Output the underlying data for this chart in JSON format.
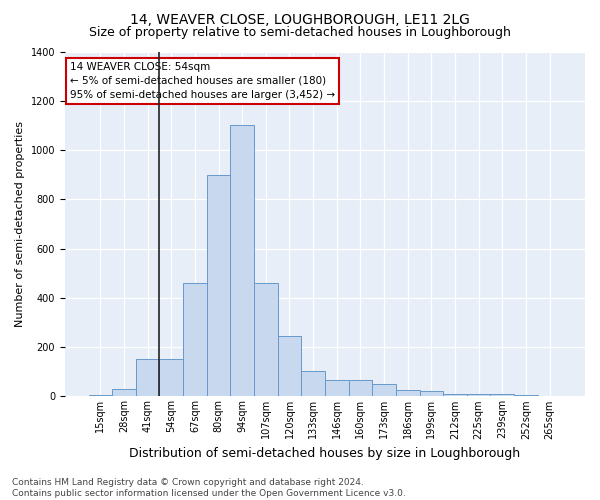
{
  "title": "14, WEAVER CLOSE, LOUGHBOROUGH, LE11 2LG",
  "subtitle": "Size of property relative to semi-detached houses in Loughborough",
  "xlabel": "Distribution of semi-detached houses by size in Loughborough",
  "ylabel": "Number of semi-detached properties",
  "bar_color": "#c8d8ee",
  "bar_edge_color": "#6699cc",
  "background_color": "#e8eef8",
  "vline_x": 3,
  "annotation_text": "14 WEAVER CLOSE: 54sqm\n← 5% of semi-detached houses are smaller (180)\n95% of semi-detached houses are larger (3,452) →",
  "annotation_box_color": "#ffffff",
  "annotation_border_color": "#cc0000",
  "bar_heights": [
    5,
    30,
    150,
    150,
    460,
    900,
    1100,
    460,
    245,
    105,
    65,
    65,
    50,
    25,
    20,
    10,
    8,
    10,
    5,
    3
  ],
  "tick_labels": [
    "15sqm",
    "28sqm",
    "41sqm",
    "54sqm",
    "67sqm",
    "80sqm",
    "94sqm",
    "107sqm",
    "120sqm",
    "133sqm",
    "146sqm",
    "160sqm",
    "173sqm",
    "186sqm",
    "199sqm",
    "212sqm",
    "225sqm",
    "239sqm",
    "252sqm",
    "265sqm"
  ],
  "ylim": [
    0,
    1400
  ],
  "yticks": [
    0,
    200,
    400,
    600,
    800,
    1000,
    1200,
    1400
  ],
  "footer_text": "Contains HM Land Registry data © Crown copyright and database right 2024.\nContains public sector information licensed under the Open Government Licence v3.0.",
  "title_fontsize": 10,
  "subtitle_fontsize": 9,
  "xlabel_fontsize": 9,
  "ylabel_fontsize": 8,
  "tick_fontsize": 7,
  "footer_fontsize": 6.5,
  "annot_fontsize": 7.5
}
